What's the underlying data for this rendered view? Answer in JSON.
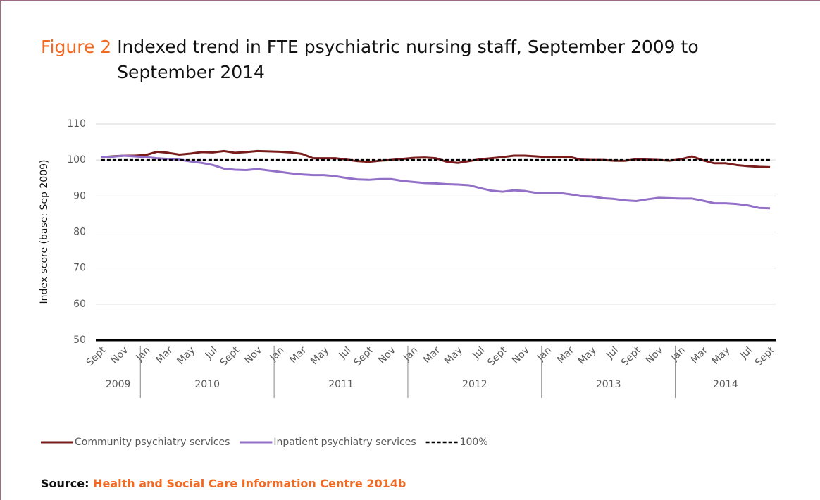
{
  "chart_data": {
    "type": "line",
    "figure_label": "Figure 2",
    "title": "Indexed trend in FTE psychiatric nursing staff, September 2009 to September 2014",
    "ylabel": "Index score (base: Sep 2009)",
    "source_label": "Source:",
    "source": "Health and Social Care Information Centre 2014b",
    "categories": [
      "Sept",
      null,
      "Nov",
      null,
      "Jan",
      null,
      "Mar",
      null,
      "May",
      null,
      "Jul",
      null,
      "Sept",
      null,
      "Nov",
      null,
      "Jan",
      null,
      "Mar",
      null,
      "May",
      null,
      "Jul",
      null,
      "Sept",
      null,
      "Nov",
      null,
      "Jan",
      null,
      "Mar",
      null,
      "May",
      null,
      "Jul",
      null,
      "Sept",
      null,
      "Nov",
      null,
      "Jan",
      null,
      "Mar",
      null,
      "May",
      null,
      "Jul",
      null,
      "Sept",
      null,
      "Nov",
      null,
      "Jan",
      null,
      "Mar",
      null,
      "May",
      null,
      "Jul",
      null,
      "Sept"
    ],
    "years": [
      "2009",
      "2010",
      "2011",
      "2012",
      "2013",
      "2014"
    ],
    "ylim": [
      50,
      110
    ],
    "yticks": [
      50,
      60,
      70,
      80,
      90,
      100,
      110
    ],
    "grid": true,
    "legend": "bottom",
    "series": [
      {
        "name": "Community psychiatry services",
        "color": "#7b1c1c",
        "style": "solid",
        "values": [
          100.8,
          101,
          101.2,
          101.2,
          101.4,
          102.3,
          102,
          101.5,
          101.8,
          102.2,
          102.1,
          102.5,
          102,
          102.2,
          102.5,
          102.4,
          102.3,
          102.1,
          101.7,
          100.5,
          100.5,
          100.5,
          100.1,
          99.7,
          99.5,
          99.8,
          100,
          100.3,
          100.6,
          100.7,
          100.5,
          99.5,
          99.2,
          99.7,
          100.2,
          100.5,
          100.8,
          101.2,
          101.2,
          101,
          100.8,
          100.9,
          100.9,
          100.1,
          100,
          100,
          99.8,
          99.8,
          100.2,
          100.1,
          100,
          99.8,
          100.2,
          101,
          99.9,
          99.1,
          99.1,
          98.6,
          98.3,
          98.1,
          98
        ]
      },
      {
        "name": "Inpatient psychiatry services",
        "color": "#9370c8",
        "style": "solid",
        "values": [
          100.7,
          100.9,
          101.2,
          101,
          100.8,
          100.5,
          100.3,
          100.1,
          99.6,
          99.2,
          98.6,
          97.6,
          97.3,
          97.2,
          97.5,
          97.1,
          96.7,
          96.3,
          96,
          95.8,
          95.8,
          95.5,
          95,
          94.6,
          94.5,
          94.7,
          94.7,
          94.2,
          93.9,
          93.6,
          93.5,
          93.3,
          93.2,
          93,
          92.2,
          91.5,
          91.2,
          91.6,
          91.4,
          90.9,
          90.9,
          90.9,
          90.5,
          90,
          89.9,
          89.4,
          89.2,
          88.8,
          88.6,
          89.1,
          89.5,
          89.4,
          89.3,
          89.3,
          88.7,
          88,
          88,
          87.8,
          87.4,
          86.7,
          86.6
        ]
      },
      {
        "name": "100%",
        "color": "#000000",
        "style": "dashed",
        "values": [
          100,
          100,
          100,
          100,
          100,
          100,
          100,
          100,
          100,
          100,
          100,
          100,
          100,
          100,
          100,
          100,
          100,
          100,
          100,
          100,
          100,
          100,
          100,
          100,
          100,
          100,
          100,
          100,
          100,
          100,
          100,
          100,
          100,
          100,
          100,
          100,
          100,
          100,
          100,
          100,
          100,
          100,
          100,
          100,
          100,
          100,
          100,
          100,
          100,
          100,
          100,
          100,
          100,
          100,
          100,
          100,
          100,
          100,
          100,
          100,
          100
        ]
      }
    ]
  }
}
